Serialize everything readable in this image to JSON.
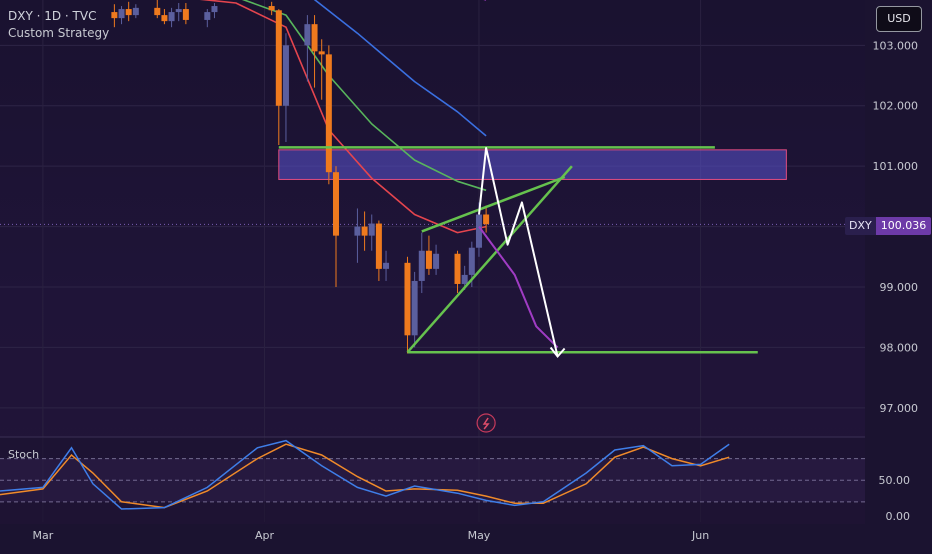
{
  "header": {
    "title": "DXY · 1D · TVC",
    "subtitle": "Custom Strategy"
  },
  "currency_button": "USD",
  "last_price": {
    "symbol": "DXY",
    "value": "100.036"
  },
  "indicator": {
    "name": "Stoch"
  },
  "colors": {
    "up_candle": "#5b5f9e",
    "down_candle": "#ef7a1e",
    "ma_fast": "#e5454e",
    "ma_mid": "#58b55c",
    "ma_slow": "#3a6fe0",
    "ma_magenta": "#a03cc4",
    "zone_fill": "#5b54d0",
    "zone_border": "#e04d83",
    "trendline": "#66c24e",
    "projection": "#ffffff",
    "stoch_k": "#3f7ee8",
    "stoch_d": "#ef8a2a",
    "price_tag": "#6d3aa8"
  },
  "chart_data": {
    "type": "candlestick",
    "symbol": "DXY",
    "timeframe": "1D",
    "price_axis": {
      "ticks": [
        {
          "value": 103,
          "label": "103.000"
        },
        {
          "value": 102,
          "label": "102.000"
        },
        {
          "value": 101,
          "label": "101.000"
        },
        {
          "value": 100,
          "label": "100.000"
        },
        {
          "value": 99,
          "label": "99.000"
        },
        {
          "value": 98,
          "label": "98.000"
        },
        {
          "value": 97,
          "label": "97.000"
        }
      ],
      "range": [
        96.6,
        103.75
      ]
    },
    "time_axis": {
      "labels": [
        "Mar",
        "Apr",
        "May",
        "Jun"
      ],
      "range": [
        "2025-02-23",
        "2025-06-24"
      ]
    },
    "candles": [
      {
        "date": "2025-03-11",
        "o": 103.55,
        "h": 103.68,
        "l": 103.3,
        "c": 103.45
      },
      {
        "date": "2025-03-12",
        "o": 103.45,
        "h": 103.65,
        "l": 103.35,
        "c": 103.6
      },
      {
        "date": "2025-03-13",
        "o": 103.6,
        "h": 103.72,
        "l": 103.4,
        "c": 103.5
      },
      {
        "date": "2025-03-14",
        "o": 103.5,
        "h": 103.68,
        "l": 103.45,
        "c": 103.62
      },
      {
        "date": "2025-03-17",
        "o": 103.62,
        "h": 103.75,
        "l": 103.45,
        "c": 103.5
      },
      {
        "date": "2025-03-18",
        "o": 103.5,
        "h": 103.6,
        "l": 103.35,
        "c": 103.4
      },
      {
        "date": "2025-03-19",
        "o": 103.4,
        "h": 103.62,
        "l": 103.3,
        "c": 103.55
      },
      {
        "date": "2025-03-20",
        "o": 103.55,
        "h": 103.7,
        "l": 103.4,
        "c": 103.6
      },
      {
        "date": "2025-03-21",
        "o": 103.6,
        "h": 103.7,
        "l": 103.35,
        "c": 103.42
      },
      {
        "date": "2025-03-24",
        "o": 103.42,
        "h": 103.6,
        "l": 103.3,
        "c": 103.55
      },
      {
        "date": "2025-03-25",
        "o": 103.55,
        "h": 103.7,
        "l": 103.45,
        "c": 103.65
      },
      {
        "date": "2025-04-02",
        "o": 103.65,
        "h": 103.72,
        "l": 103.5,
        "c": 103.58
      },
      {
        "date": "2025-04-03",
        "o": 103.58,
        "h": 103.6,
        "l": 101.35,
        "c": 102.0
      },
      {
        "date": "2025-04-04",
        "o": 102.0,
        "h": 103.2,
        "l": 101.4,
        "c": 103.0
      },
      {
        "date": "2025-04-07",
        "o": 103.0,
        "h": 103.5,
        "l": 102.4,
        "c": 103.35
      },
      {
        "date": "2025-04-08",
        "o": 103.35,
        "h": 103.5,
        "l": 102.3,
        "c": 102.9
      },
      {
        "date": "2025-04-09",
        "o": 102.9,
        "h": 103.1,
        "l": 102.1,
        "c": 102.85
      },
      {
        "date": "2025-04-10",
        "o": 102.85,
        "h": 103.0,
        "l": 100.7,
        "c": 100.9
      },
      {
        "date": "2025-04-11",
        "o": 100.9,
        "h": 101.0,
        "l": 99.0,
        "c": 99.85
      },
      {
        "date": "2025-04-14",
        "o": 99.85,
        "h": 100.3,
        "l": 99.4,
        "c": 100.0
      },
      {
        "date": "2025-04-15",
        "o": 100.0,
        "h": 100.25,
        "l": 99.6,
        "c": 99.85
      },
      {
        "date": "2025-04-16",
        "o": 99.85,
        "h": 100.2,
        "l": 99.6,
        "c": 100.05
      },
      {
        "date": "2025-04-17",
        "o": 100.05,
        "h": 100.1,
        "l": 99.1,
        "c": 99.3
      },
      {
        "date": "2025-04-18",
        "o": 99.3,
        "h": 99.6,
        "l": 99.1,
        "c": 99.4
      },
      {
        "date": "2025-04-21",
        "o": 99.4,
        "h": 99.5,
        "l": 97.9,
        "c": 98.2
      },
      {
        "date": "2025-04-22",
        "o": 98.2,
        "h": 99.25,
        "l": 98.0,
        "c": 99.1
      },
      {
        "date": "2025-04-23",
        "o": 99.1,
        "h": 99.9,
        "l": 98.9,
        "c": 99.6
      },
      {
        "date": "2025-04-24",
        "o": 99.6,
        "h": 99.85,
        "l": 99.2,
        "c": 99.3
      },
      {
        "date": "2025-04-25",
        "o": 99.3,
        "h": 99.7,
        "l": 99.2,
        "c": 99.55
      },
      {
        "date": "2025-04-28",
        "o": 99.55,
        "h": 99.6,
        "l": 98.9,
        "c": 99.05
      },
      {
        "date": "2025-04-29",
        "o": 99.05,
        "h": 99.35,
        "l": 98.95,
        "c": 99.2
      },
      {
        "date": "2025-04-30",
        "o": 99.2,
        "h": 99.75,
        "l": 99.0,
        "c": 99.65
      },
      {
        "date": "2025-05-01",
        "o": 99.65,
        "h": 100.4,
        "l": 99.5,
        "c": 100.2
      },
      {
        "date": "2025-05-02",
        "o": 100.2,
        "h": 100.35,
        "l": 99.9,
        "c": 100.04
      }
    ],
    "moving_averages": [
      {
        "color": "#e5454e",
        "points": [
          [
            "2025-03-20",
            103.8
          ],
          [
            "2025-03-28",
            103.7
          ],
          [
            "2025-04-04",
            103.3
          ],
          [
            "2025-04-10",
            101.6
          ],
          [
            "2025-04-16",
            100.8
          ],
          [
            "2025-04-22",
            100.2
          ],
          [
            "2025-04-28",
            99.9
          ],
          [
            "2025-05-02",
            100.0
          ]
        ]
      },
      {
        "color": "#58b55c",
        "points": [
          [
            "2025-03-28",
            103.8
          ],
          [
            "2025-04-04",
            103.5
          ],
          [
            "2025-04-10",
            102.5
          ],
          [
            "2025-04-16",
            101.7
          ],
          [
            "2025-04-22",
            101.1
          ],
          [
            "2025-04-28",
            100.75
          ],
          [
            "2025-05-02",
            100.6
          ]
        ]
      },
      {
        "color": "#3a6fe0",
        "points": [
          [
            "2025-04-07",
            103.85
          ],
          [
            "2025-04-14",
            103.2
          ],
          [
            "2025-04-22",
            102.4
          ],
          [
            "2025-04-28",
            101.9
          ],
          [
            "2025-05-02",
            101.5
          ]
        ]
      },
      {
        "color": "#a03cc4",
        "points": [
          [
            "2025-04-28",
            103.9
          ],
          [
            "2025-05-02",
            103.75
          ]
        ]
      }
    ],
    "projected_path": {
      "color": "#a03cc4",
      "points": [
        [
          "2025-05-01",
          100.0
        ],
        [
          "2025-05-06",
          99.2
        ],
        [
          "2025-05-09",
          98.35
        ],
        [
          "2025-05-12",
          98.0
        ]
      ]
    },
    "drawings": {
      "supply_zone": {
        "from": "2025-04-03",
        "to": "2025-06-13",
        "top": 101.27,
        "bottom": 100.78
      },
      "resistance_line": {
        "from": "2025-04-03",
        "to": "2025-06-03",
        "value": 101.31
      },
      "support_line": {
        "from": "2025-04-21",
        "to": "2025-06-09",
        "value": 97.92
      },
      "wedge_upper": [
        [
          "2025-04-23",
          99.92
        ],
        [
          "2025-05-13",
          100.82
        ]
      ],
      "wedge_lower": [
        [
          "2025-04-21",
          97.92
        ],
        [
          "2025-05-14",
          101.0
        ]
      ],
      "projection_path": [
        [
          "2025-05-01",
          100.2
        ],
        [
          "2025-05-02",
          101.3
        ],
        [
          "2025-05-05",
          99.7
        ],
        [
          "2025-05-07",
          100.4
        ],
        [
          "2025-05-12",
          97.85
        ]
      ]
    },
    "stochastic": {
      "name": "Stoch",
      "ticks": [
        {
          "value": 50,
          "label": "50.00"
        },
        {
          "value": 0,
          "label": "0.00"
        }
      ],
      "bands": [
        80,
        50,
        20
      ],
      "range": [
        -8,
        110
      ],
      "k": [
        [
          "2025-02-23",
          35
        ],
        [
          "2025-03-01",
          40
        ],
        [
          "2025-03-05",
          95
        ],
        [
          "2025-03-08",
          45
        ],
        [
          "2025-03-12",
          10
        ],
        [
          "2025-03-18",
          12
        ],
        [
          "2025-03-24",
          40
        ],
        [
          "2025-03-31",
          95
        ],
        [
          "2025-04-04",
          105
        ],
        [
          "2025-04-09",
          70
        ],
        [
          "2025-04-14",
          40
        ],
        [
          "2025-04-18",
          28
        ],
        [
          "2025-04-22",
          42
        ],
        [
          "2025-04-28",
          32
        ],
        [
          "2025-05-02",
          22
        ],
        [
          "2025-05-06",
          15
        ],
        [
          "2025-05-10",
          20
        ],
        [
          "2025-05-16",
          60
        ],
        [
          "2025-05-20",
          92
        ],
        [
          "2025-05-24",
          98
        ],
        [
          "2025-05-28",
          70
        ],
        [
          "2025-06-01",
          72
        ],
        [
          "2025-06-05",
          100
        ]
      ],
      "d": [
        [
          "2025-02-23",
          30
        ],
        [
          "2025-03-01",
          38
        ],
        [
          "2025-03-05",
          85
        ],
        [
          "2025-03-08",
          60
        ],
        [
          "2025-03-12",
          20
        ],
        [
          "2025-03-18",
          12
        ],
        [
          "2025-03-24",
          35
        ],
        [
          "2025-03-31",
          80
        ],
        [
          "2025-04-04",
          100
        ],
        [
          "2025-04-09",
          85
        ],
        [
          "2025-04-14",
          55
        ],
        [
          "2025-04-18",
          35
        ],
        [
          "2025-04-22",
          38
        ],
        [
          "2025-04-28",
          36
        ],
        [
          "2025-05-02",
          28
        ],
        [
          "2025-05-06",
          18
        ],
        [
          "2025-05-10",
          18
        ],
        [
          "2025-05-16",
          45
        ],
        [
          "2025-05-20",
          82
        ],
        [
          "2025-05-24",
          96
        ],
        [
          "2025-05-28",
          80
        ],
        [
          "2025-06-01",
          70
        ],
        [
          "2025-06-05",
          82
        ]
      ]
    }
  }
}
